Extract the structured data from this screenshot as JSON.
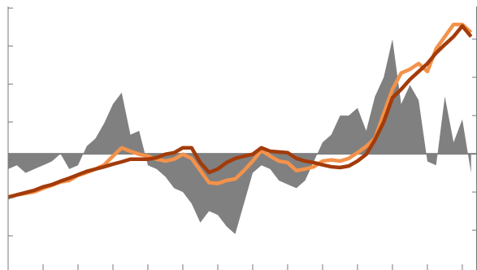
{
  "chart_data": {
    "type": "line",
    "x": [
      0,
      0.25,
      0.5,
      0.75,
      1,
      1.25,
      1.5,
      1.75,
      2,
      2.25,
      2.5,
      2.75,
      3,
      3.25,
      3.5,
      3.75,
      4,
      4.25,
      4.5,
      4.75,
      5,
      5.25,
      5.5,
      5.75,
      6,
      6.25,
      6.5,
      6.75,
      7,
      7.25,
      7.5,
      7.75,
      8,
      8.25,
      8.5,
      8.75,
      9,
      9.25,
      9.5,
      9.75,
      10,
      10.25,
      10.5,
      10.75,
      11,
      11.25,
      11.5,
      11.75,
      12,
      12.25,
      12.5,
      12.75,
      13,
      13.25
    ],
    "xlim": [
      0,
      13.42
    ],
    "xticks": [
      0,
      1,
      2,
      3,
      4,
      5,
      6,
      7,
      8,
      9,
      10,
      11,
      12,
      13
    ],
    "ylim": [
      -0.9,
      6
    ],
    "yticks": [
      0,
      1,
      2,
      3,
      4,
      5,
      6
    ],
    "y2lim": [
      -3.04,
      3.81
    ],
    "y2ticks": [
      -2,
      -1,
      0,
      1,
      2,
      3
    ],
    "series": [
      {
        "kind": "area",
        "axis": "y2",
        "color": "#808080",
        "values": [
          -0.4,
          -0.3,
          -0.5,
          -0.4,
          -0.3,
          -0.2,
          0.0,
          -0.4,
          -0.3,
          0.2,
          0.4,
          0.8,
          1.3,
          1.6,
          0.5,
          0.6,
          -0.3,
          -0.4,
          -0.6,
          -0.9,
          -1.0,
          -1.3,
          -1.8,
          -1.5,
          -1.6,
          -1.9,
          -2.1,
          -1.3,
          -0.5,
          -0.3,
          -0.4,
          -0.7,
          -0.8,
          -0.9,
          -0.7,
          -0.2,
          0.3,
          0.5,
          1.0,
          1.0,
          1.2,
          0.6,
          1.5,
          2.0,
          3.0,
          1.3,
          1.8,
          1.4,
          -0.2,
          -0.3,
          1.5,
          0.3,
          0.9,
          -0.5
        ]
      },
      {
        "kind": "line",
        "color": "#f4924a",
        "values": [
          1.03,
          1.08,
          1.12,
          1.16,
          1.25,
          1.33,
          1.42,
          1.46,
          1.59,
          1.67,
          1.76,
          1.87,
          2.1,
          2.32,
          2.23,
          2.15,
          2.1,
          2.02,
          1.97,
          2.02,
          2.15,
          2.04,
          1.72,
          1.4,
          1.38,
          1.46,
          1.5,
          1.72,
          1.97,
          2.25,
          2.1,
          1.97,
          1.93,
          1.72,
          1.76,
          1.82,
          1.97,
          2.0,
          1.97,
          2.04,
          2.19,
          2.36,
          2.57,
          3.22,
          3.86,
          4.29,
          4.39,
          4.54,
          4.33,
          4.93,
          5.25,
          5.57,
          5.57,
          5.36
        ]
      },
      {
        "kind": "line",
        "color": "#a33b0a",
        "values": [
          1.01,
          1.08,
          1.14,
          1.2,
          1.29,
          1.35,
          1.44,
          1.52,
          1.61,
          1.7,
          1.76,
          1.82,
          1.89,
          1.95,
          2.02,
          2.02,
          2.02,
          2.06,
          2.15,
          2.19,
          2.32,
          2.32,
          1.93,
          1.67,
          1.76,
          1.93,
          2.04,
          2.1,
          2.15,
          2.32,
          2.23,
          2.21,
          2.19,
          2.04,
          1.97,
          1.93,
          1.87,
          1.82,
          1.8,
          1.84,
          1.97,
          2.15,
          2.53,
          3.0,
          3.64,
          3.86,
          4.12,
          4.33,
          4.54,
          4.82,
          5.04,
          5.25,
          5.53,
          5.25
        ]
      }
    ]
  }
}
